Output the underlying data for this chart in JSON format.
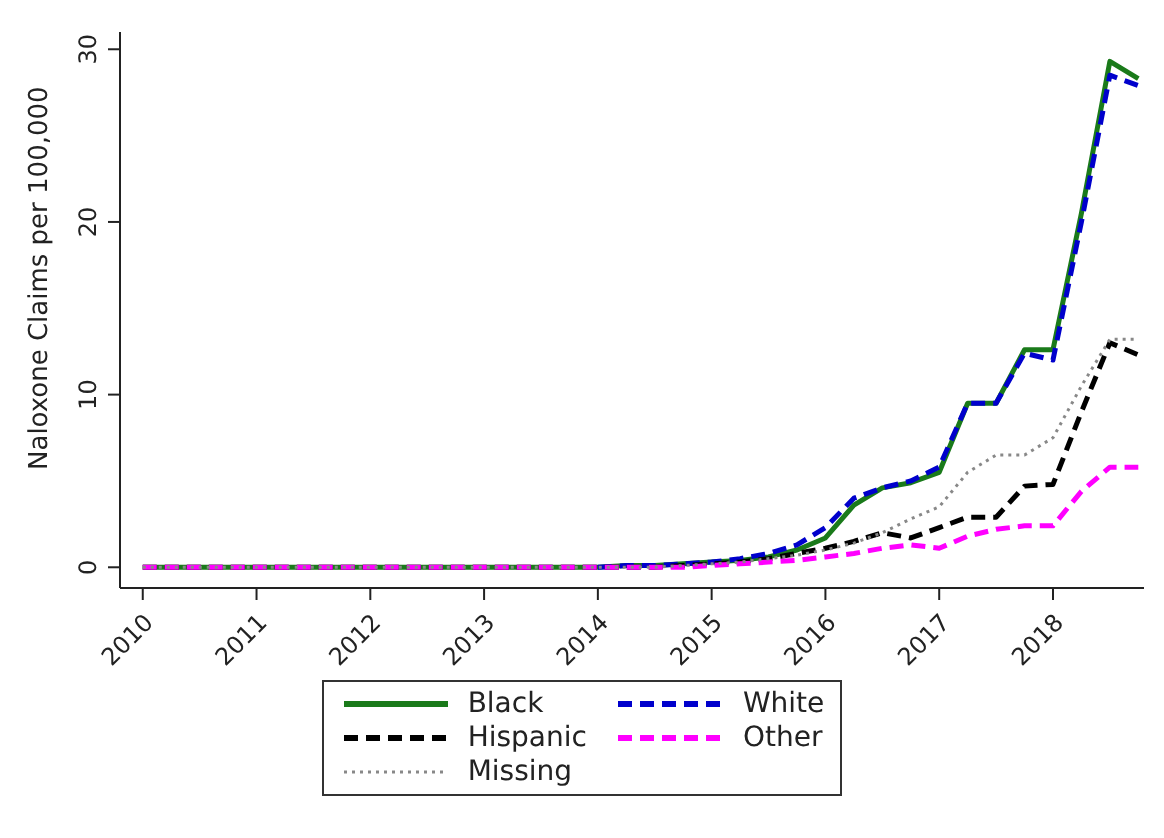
{
  "chart_data": {
    "type": "line",
    "ylabel": "Naloxone Claims per 100,000",
    "x": [
      2010,
      2010.25,
      2010.5,
      2010.75,
      2011,
      2011.25,
      2011.5,
      2011.75,
      2012,
      2012.25,
      2012.5,
      2012.75,
      2013,
      2013.25,
      2013.5,
      2013.75,
      2014,
      2014.25,
      2014.5,
      2014.75,
      2015,
      2015.25,
      2015.5,
      2015.75,
      2016,
      2016.25,
      2016.5,
      2016.75,
      2017,
      2017.25,
      2017.5,
      2017.75,
      2018,
      2018.25,
      2018.5,
      2018.75
    ],
    "series": [
      {
        "name": "Black",
        "color": "#1a7a1a",
        "line_style": "solid",
        "values": [
          0,
          0,
          0,
          0,
          0,
          0,
          0,
          0,
          0,
          0,
          0,
          0,
          0,
          0,
          0,
          0,
          0,
          0.1,
          0.1,
          0.2,
          0.3,
          0.4,
          0.6,
          1.0,
          1.7,
          3.6,
          4.6,
          4.9,
          5.5,
          9.5,
          9.5,
          12.6,
          12.6,
          20.5,
          29.3,
          28.3
        ]
      },
      {
        "name": "White",
        "color": "#0000cc",
        "line_style": "dashed",
        "values": [
          null,
          null,
          null,
          null,
          null,
          null,
          null,
          null,
          null,
          null,
          null,
          null,
          null,
          null,
          null,
          null,
          0,
          0.1,
          0.1,
          0.2,
          0.3,
          0.5,
          0.8,
          1.3,
          2.3,
          4.0,
          4.6,
          5.0,
          5.8,
          9.5,
          9.5,
          12.4,
          12.0,
          20.0,
          28.5,
          27.9
        ]
      },
      {
        "name": "Hispanic",
        "color": "#000000",
        "line_style": "dashed",
        "values": [
          0,
          0,
          0,
          0,
          0,
          0,
          0,
          0,
          0,
          0,
          0,
          0,
          0,
          0,
          0,
          0,
          0,
          0,
          0,
          0.1,
          0.2,
          0.3,
          0.5,
          0.8,
          1.1,
          1.5,
          2.0,
          1.7,
          2.3,
          2.9,
          2.9,
          4.7,
          4.8,
          9.0,
          13.0,
          12.3
        ]
      },
      {
        "name": "Other",
        "color": "#ff00ff",
        "line_style": "dashed",
        "values": [
          0,
          0,
          0,
          0,
          0,
          0,
          0,
          0,
          0,
          0,
          0,
          0,
          0,
          0,
          0,
          0,
          0,
          0,
          0,
          0,
          0.1,
          0.2,
          0.3,
          0.4,
          0.6,
          0.8,
          1.1,
          1.3,
          1.1,
          1.8,
          2.2,
          2.4,
          2.4,
          4.4,
          5.8,
          5.8
        ]
      },
      {
        "name": "Missing",
        "color": "#888888",
        "line_style": "dotted",
        "values": [
          0,
          0,
          0,
          0,
          0,
          0,
          0,
          0,
          0,
          0,
          0,
          0,
          0,
          0,
          0,
          0,
          0,
          0,
          0,
          0.1,
          0.2,
          0.3,
          0.5,
          0.7,
          1.0,
          1.4,
          2.0,
          2.8,
          3.5,
          5.5,
          6.5,
          6.5,
          7.5,
          10.5,
          13.2,
          13.2
        ]
      }
    ],
    "xlim": [
      2009.8,
      2018.8
    ],
    "xticks": [
      2010,
      2011,
      2012,
      2013,
      2014,
      2015,
      2016,
      2017,
      2018
    ],
    "ylim": [
      -1.2,
      31
    ],
    "yticks": [
      0,
      10,
      20,
      30
    ],
    "grid": false,
    "legend": "bottom",
    "marker": "none"
  }
}
